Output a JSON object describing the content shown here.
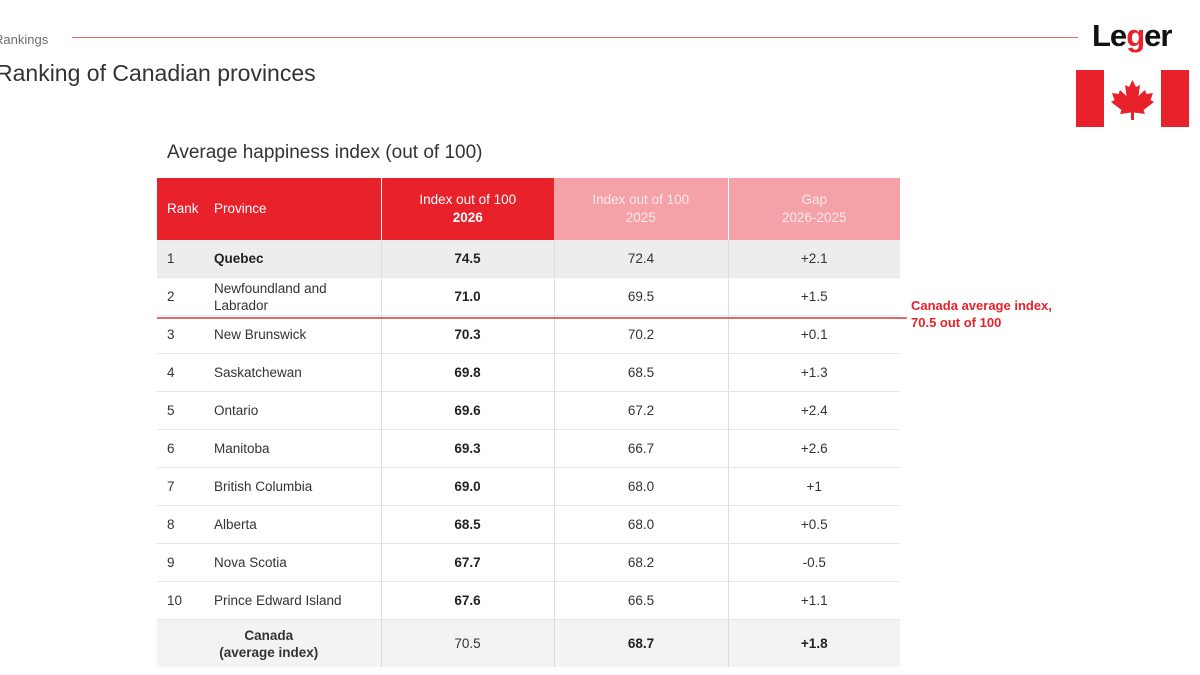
{
  "header": {
    "section": "Rankings",
    "title": "Ranking of Canadian provinces",
    "logo_text_start": "Le",
    "logo_text_accent": "g",
    "logo_text_end": "er"
  },
  "table": {
    "title": "Average happiness index (out of 100)",
    "columns": {
      "rank": "Rank",
      "province": "Province",
      "col2026_line1": "Index out of 100",
      "col2026_line2": "2026",
      "col2025_line1": "Index out of 100",
      "col2025_line2": "2025",
      "gap_line1": "Gap",
      "gap_line2": "2026-2025"
    },
    "rows": [
      {
        "rank": "1",
        "province": "Quebec",
        "i2026": "74.5",
        "i2025": "72.4",
        "gap": "+2.1"
      },
      {
        "rank": "2",
        "province": "Newfoundland and Labrador",
        "i2026": "71.0",
        "i2025": "69.5",
        "gap": "+1.5"
      },
      {
        "rank": "3",
        "province": "New Brunswick",
        "i2026": "70.3",
        "i2025": "70.2",
        "gap": "+0.1"
      },
      {
        "rank": "4",
        "province": "Saskatchewan",
        "i2026": "69.8",
        "i2025": "68.5",
        "gap": "+1.3"
      },
      {
        "rank": "5",
        "province": "Ontario",
        "i2026": "69.6",
        "i2025": "67.2",
        "gap": "+2.4"
      },
      {
        "rank": "6",
        "province": "Manitoba",
        "i2026": "69.3",
        "i2025": "66.7",
        "gap": "+2.6"
      },
      {
        "rank": "7",
        "province": "British Columbia",
        "i2026": "69.0",
        "i2025": "68.0",
        "gap": "+1"
      },
      {
        "rank": "8",
        "province": "Alberta",
        "i2026": "68.5",
        "i2025": "68.0",
        "gap": "+0.5"
      },
      {
        "rank": "9",
        "province": "Nova Scotia",
        "i2026": "67.7",
        "i2025": "68.2",
        "gap": "-0.5"
      },
      {
        "rank": "10",
        "province": "Prince Edward Island",
        "i2026": "67.6",
        "i2025": "66.5",
        "gap": "+1.1"
      }
    ],
    "total": {
      "label_line1": "Canada",
      "label_line2": "(average index)",
      "i2026": "70.5",
      "i2025": "68.7",
      "gap": "+1.8"
    }
  },
  "annotation": {
    "line1": "Canada average index,",
    "line2": "70.5 out of 100"
  },
  "colors": {
    "accent_red": "#e8212a",
    "header_light": "#f4a2a8",
    "first_row_bg": "#ededed"
  },
  "icons": {
    "flag": "canada-flag-icon",
    "leaf": "maple-leaf-icon"
  }
}
